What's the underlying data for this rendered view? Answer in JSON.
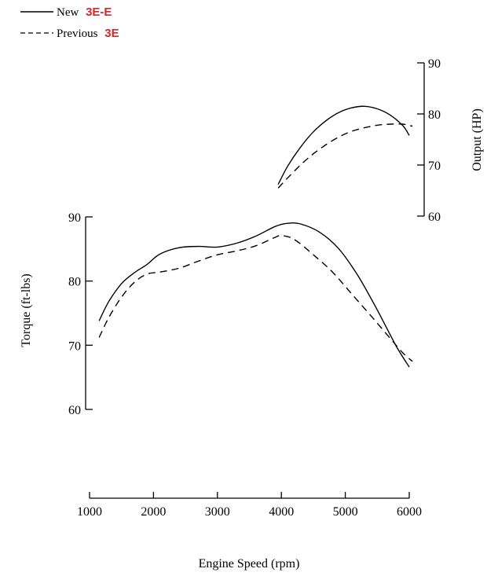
{
  "chart_data": {
    "type": "line",
    "xlabel": "Engine Speed (rpm)",
    "ylabel_left": "Torque (ft-lbs)",
    "ylabel_right": "Output (HP)",
    "x_ticks": [
      1000,
      2000,
      3000,
      4000,
      5000,
      6000
    ],
    "x_tick_labels": [
      "1000",
      "2000",
      "3000",
      "4000",
      "5000",
      "6000"
    ],
    "xlim": [
      1000,
      6000
    ],
    "torque_ticks": [
      60,
      70,
      80,
      90
    ],
    "torque_tick_labels": [
      "60",
      "70",
      "80",
      "90"
    ],
    "torque_lim": [
      60,
      90
    ],
    "output_ticks": [
      60,
      70,
      80,
      90
    ],
    "output_tick_labels": [
      "60",
      "70",
      "80",
      "90"
    ],
    "output_lim": [
      60,
      90
    ],
    "grid": false,
    "legend": {
      "placement": "top-left",
      "entries": [
        {
          "prefix": "New",
          "code": "3E-E",
          "style": "solid"
        },
        {
          "prefix": "Previous",
          "code": "3E",
          "style": "dashed"
        }
      ]
    },
    "series": [
      {
        "legend_index": 0,
        "axis": "torque",
        "style": "solid",
        "x": [
          1150,
          1300,
          1500,
          1700,
          1900,
          2100,
          2400,
          2700,
          3000,
          3300,
          3600,
          3900,
          4100,
          4300,
          4600,
          4900,
          5200,
          5500,
          5800,
          6000
        ],
        "y": [
          73.8,
          76.8,
          79.6,
          81.3,
          82.6,
          84.2,
          85.2,
          85.4,
          85.3,
          85.9,
          87.0,
          88.5,
          89.0,
          88.9,
          87.6,
          85.0,
          80.8,
          75.5,
          69.8,
          66.6
        ]
      },
      {
        "legend_index": 1,
        "axis": "torque",
        "style": "dashed",
        "x": [
          1150,
          1300,
          1500,
          1700,
          1900,
          2100,
          2400,
          2700,
          3000,
          3300,
          3600,
          3900,
          4000,
          4200,
          4500,
          4800,
          5100,
          5400,
          5700,
          5900,
          6050
        ],
        "y": [
          71.2,
          74.3,
          77.5,
          79.8,
          81.1,
          81.4,
          82.0,
          83.1,
          84.1,
          84.7,
          85.5,
          86.8,
          87.1,
          86.5,
          84.1,
          81.4,
          78.0,
          74.6,
          71.1,
          68.8,
          67.5
        ]
      },
      {
        "legend_index": 0,
        "axis": "output",
        "style": "solid",
        "x": [
          3950,
          4100,
          4300,
          4500,
          4700,
          4900,
          5100,
          5300,
          5500,
          5700,
          5900,
          6000
        ],
        "y": [
          66.2,
          69.8,
          73.5,
          76.5,
          78.7,
          80.3,
          81.2,
          81.5,
          81.0,
          79.8,
          77.7,
          75.8
        ]
      },
      {
        "legend_index": 1,
        "axis": "output",
        "style": "dashed",
        "x": [
          3950,
          4100,
          4300,
          4500,
          4700,
          4900,
          5100,
          5300,
          5500,
          5700,
          5900,
          6050
        ],
        "y": [
          65.5,
          67.5,
          70.0,
          72.2,
          74.0,
          75.5,
          76.6,
          77.3,
          77.8,
          78.0,
          78.0,
          77.6
        ]
      }
    ]
  }
}
